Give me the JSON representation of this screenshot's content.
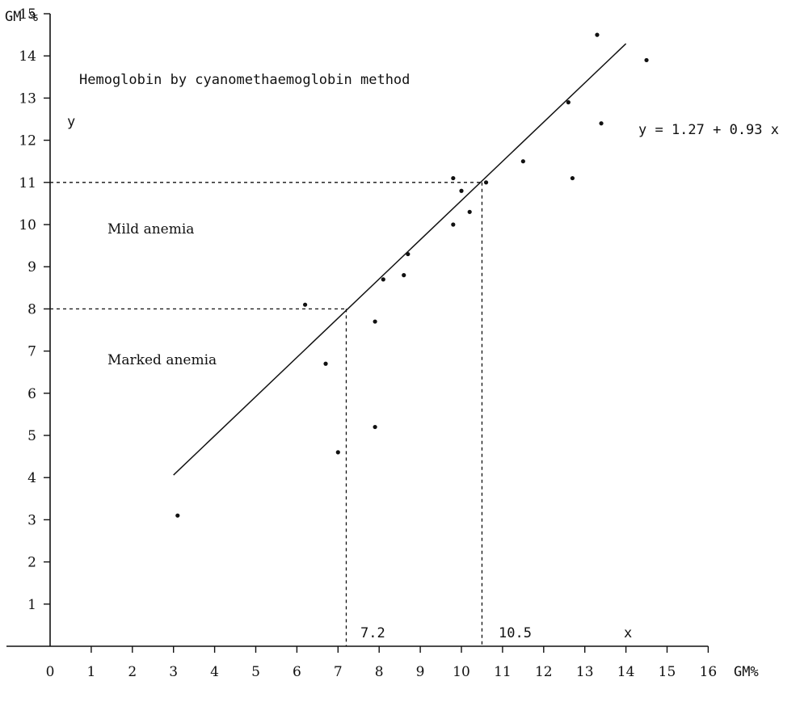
{
  "chart_data": {
    "type": "scatter",
    "title": "Hemoglobin by cyanomethaemoglobin method",
    "y_unit": "GM %",
    "y_axis_letter": "y",
    "x_unit": "GM%",
    "x_axis_letter": "x",
    "xlim": [
      0,
      16
    ],
    "ylim": [
      0,
      15
    ],
    "x_ticks": [
      0,
      1,
      2,
      3,
      4,
      5,
      6,
      7,
      8,
      9,
      10,
      11,
      12,
      13,
      14,
      15,
      16
    ],
    "y_ticks": [
      1,
      2,
      3,
      4,
      5,
      6,
      7,
      8,
      9,
      10,
      11,
      12,
      13,
      14,
      15
    ],
    "grid": false,
    "series": [
      {
        "x": [
          3.1,
          6.2,
          6.7,
          7.0,
          7.9,
          7.9,
          8.1,
          8.6,
          8.7,
          9.8,
          9.8,
          10.0,
          10.2,
          10.6,
          11.5,
          12.6,
          12.7,
          13.3,
          13.4,
          14.5
        ],
        "y": [
          3.1,
          8.1,
          6.7,
          4.6,
          7.7,
          5.2,
          8.7,
          8.8,
          9.3,
          10.0,
          11.1,
          10.8,
          10.3,
          11.0,
          11.5,
          12.9,
          11.1,
          14.5,
          12.4,
          13.9
        ]
      }
    ],
    "regression": {
      "equation": "y = 1.27 + 0.93 x",
      "intercept": 1.27,
      "slope": 0.93,
      "x_range": [
        3.0,
        14.0
      ]
    },
    "thresholds": [
      {
        "label": "Mild anemia",
        "y": 11,
        "x": 10.5,
        "x_label": "10.5"
      },
      {
        "label": "Marked anemia",
        "y": 8,
        "x": 7.2,
        "x_label": "7.2"
      }
    ]
  }
}
